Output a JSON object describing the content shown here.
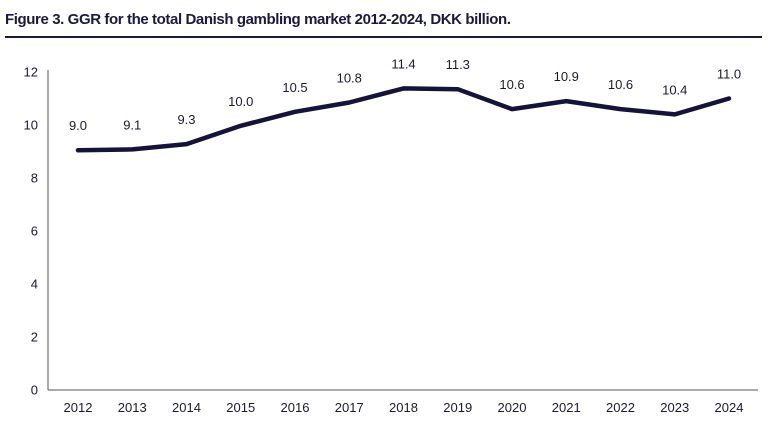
{
  "figure": {
    "title": "Figure 3. GGR for the total Danish gambling market 2012-2024, DKK billion."
  },
  "chart_data": {
    "type": "line",
    "title": "Figure 3. GGR for the total Danish gambling market 2012-2024, DKK billion.",
    "xlabel": "",
    "ylabel": "",
    "categories": [
      "2012",
      "2013",
      "2014",
      "2015",
      "2016",
      "2017",
      "2018",
      "2019",
      "2020",
      "2021",
      "2022",
      "2023",
      "2024"
    ],
    "series": [
      {
        "values": [
          9.05,
          9.08,
          9.28,
          9.97,
          10.5,
          10.85,
          11.38,
          11.35,
          10.6,
          10.9,
          10.6,
          10.4,
          11.0
        ],
        "data_labels": [
          "9.0",
          "9.1",
          "9.3",
          "10.0",
          "10.5",
          "10.8",
          "11.4",
          "11.3",
          "10.6",
          "10.9",
          "10.6",
          "10.4",
          "11.0"
        ]
      }
    ],
    "ylim": [
      0,
      12
    ],
    "yticks": [
      "0",
      "2",
      "4",
      "6",
      "8",
      "10",
      "12"
    ],
    "grid": false,
    "legend": "none",
    "line_color": "#14143a"
  }
}
